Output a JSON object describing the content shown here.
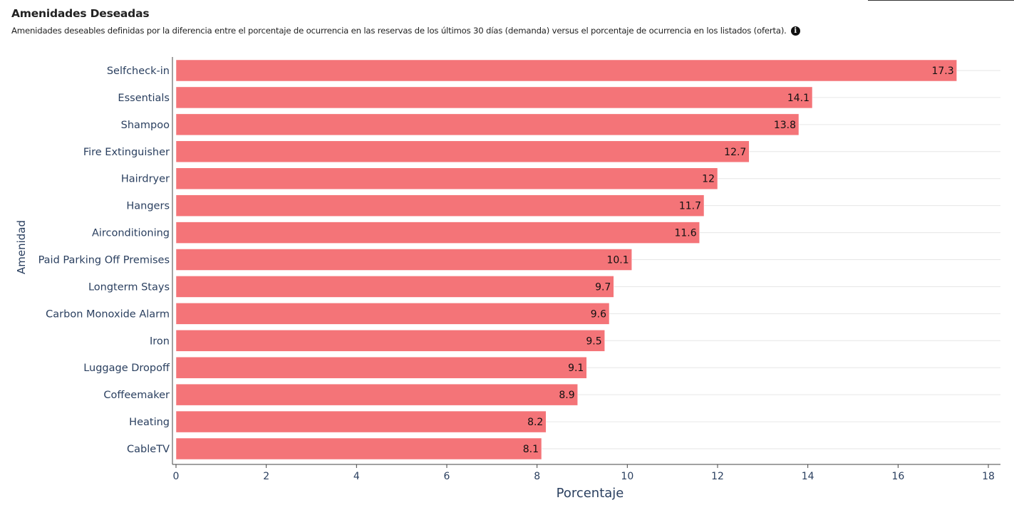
{
  "header": {
    "title": "Amenidades Deseadas",
    "subtitle": "Amenidades deseables definidas por la diferencia entre el porcentaje de ocurrencia en las reservas de los últimos 30 días (demanda) versus el porcentaje de ocurrencia en los listados (oferta).",
    "info_icon": "info-icon"
  },
  "chart_data": {
    "type": "bar",
    "orientation": "horizontal",
    "title": "Amenidades Deseadas",
    "xlabel": "Porcentaje",
    "ylabel": "Amenidad",
    "xlim": [
      0,
      18
    ],
    "xticks": [
      0,
      2,
      4,
      6,
      8,
      10,
      12,
      14,
      16,
      18
    ],
    "grid": true,
    "bar_color": "#f47478",
    "categories": [
      "Selfcheck-in",
      "Essentials",
      "Shampoo",
      "Fire Extinguisher",
      "Hairdryer",
      "Hangers",
      "Airconditioning",
      "Paid Parking Off Premises",
      "Longterm Stays",
      "Carbon Monoxide Alarm",
      "Iron",
      "Luggage Dropoff",
      "Coffeemaker",
      "Heating",
      "CableTV"
    ],
    "values": [
      17.3,
      14.1,
      13.8,
      12.7,
      12,
      11.7,
      11.6,
      10.1,
      9.7,
      9.6,
      9.5,
      9.1,
      8.9,
      8.2,
      8.1
    ],
    "value_labels": [
      "17.3",
      "14.1",
      "13.8",
      "12.7",
      "12",
      "11.7",
      "11.6",
      "10.1",
      "9.7",
      "9.6",
      "9.5",
      "9.1",
      "8.9",
      "8.2",
      "8.1"
    ]
  }
}
